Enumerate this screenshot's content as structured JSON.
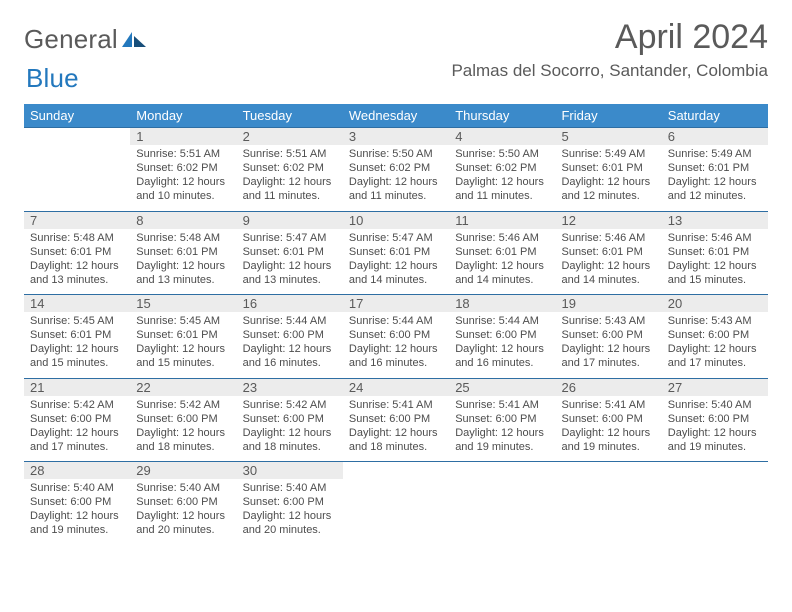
{
  "logo": {
    "text1": "General",
    "text2": "Blue"
  },
  "title": "April 2024",
  "location": "Palmas del Socorro, Santander, Colombia",
  "dow": [
    "Sunday",
    "Monday",
    "Tuesday",
    "Wednesday",
    "Thursday",
    "Friday",
    "Saturday"
  ],
  "colors": {
    "header_bg": "#3b8aca",
    "divider": "#2e6ea3",
    "daynum_bg": "#ececec",
    "text": "#5a5a5a"
  },
  "weeks": [
    {
      "nums": [
        "",
        "1",
        "2",
        "3",
        "4",
        "5",
        "6"
      ],
      "cells": [
        null,
        {
          "sr": "Sunrise: 5:51 AM",
          "ss": "Sunset: 6:02 PM",
          "d1": "Daylight: 12 hours",
          "d2": "and 10 minutes."
        },
        {
          "sr": "Sunrise: 5:51 AM",
          "ss": "Sunset: 6:02 PM",
          "d1": "Daylight: 12 hours",
          "d2": "and 11 minutes."
        },
        {
          "sr": "Sunrise: 5:50 AM",
          "ss": "Sunset: 6:02 PM",
          "d1": "Daylight: 12 hours",
          "d2": "and 11 minutes."
        },
        {
          "sr": "Sunrise: 5:50 AM",
          "ss": "Sunset: 6:02 PM",
          "d1": "Daylight: 12 hours",
          "d2": "and 11 minutes."
        },
        {
          "sr": "Sunrise: 5:49 AM",
          "ss": "Sunset: 6:01 PM",
          "d1": "Daylight: 12 hours",
          "d2": "and 12 minutes."
        },
        {
          "sr": "Sunrise: 5:49 AM",
          "ss": "Sunset: 6:01 PM",
          "d1": "Daylight: 12 hours",
          "d2": "and 12 minutes."
        }
      ]
    },
    {
      "nums": [
        "7",
        "8",
        "9",
        "10",
        "11",
        "12",
        "13"
      ],
      "cells": [
        {
          "sr": "Sunrise: 5:48 AM",
          "ss": "Sunset: 6:01 PM",
          "d1": "Daylight: 12 hours",
          "d2": "and 13 minutes."
        },
        {
          "sr": "Sunrise: 5:48 AM",
          "ss": "Sunset: 6:01 PM",
          "d1": "Daylight: 12 hours",
          "d2": "and 13 minutes."
        },
        {
          "sr": "Sunrise: 5:47 AM",
          "ss": "Sunset: 6:01 PM",
          "d1": "Daylight: 12 hours",
          "d2": "and 13 minutes."
        },
        {
          "sr": "Sunrise: 5:47 AM",
          "ss": "Sunset: 6:01 PM",
          "d1": "Daylight: 12 hours",
          "d2": "and 14 minutes."
        },
        {
          "sr": "Sunrise: 5:46 AM",
          "ss": "Sunset: 6:01 PM",
          "d1": "Daylight: 12 hours",
          "d2": "and 14 minutes."
        },
        {
          "sr": "Sunrise: 5:46 AM",
          "ss": "Sunset: 6:01 PM",
          "d1": "Daylight: 12 hours",
          "d2": "and 14 minutes."
        },
        {
          "sr": "Sunrise: 5:46 AM",
          "ss": "Sunset: 6:01 PM",
          "d1": "Daylight: 12 hours",
          "d2": "and 15 minutes."
        }
      ]
    },
    {
      "nums": [
        "14",
        "15",
        "16",
        "17",
        "18",
        "19",
        "20"
      ],
      "cells": [
        {
          "sr": "Sunrise: 5:45 AM",
          "ss": "Sunset: 6:01 PM",
          "d1": "Daylight: 12 hours",
          "d2": "and 15 minutes."
        },
        {
          "sr": "Sunrise: 5:45 AM",
          "ss": "Sunset: 6:01 PM",
          "d1": "Daylight: 12 hours",
          "d2": "and 15 minutes."
        },
        {
          "sr": "Sunrise: 5:44 AM",
          "ss": "Sunset: 6:00 PM",
          "d1": "Daylight: 12 hours",
          "d2": "and 16 minutes."
        },
        {
          "sr": "Sunrise: 5:44 AM",
          "ss": "Sunset: 6:00 PM",
          "d1": "Daylight: 12 hours",
          "d2": "and 16 minutes."
        },
        {
          "sr": "Sunrise: 5:44 AM",
          "ss": "Sunset: 6:00 PM",
          "d1": "Daylight: 12 hours",
          "d2": "and 16 minutes."
        },
        {
          "sr": "Sunrise: 5:43 AM",
          "ss": "Sunset: 6:00 PM",
          "d1": "Daylight: 12 hours",
          "d2": "and 17 minutes."
        },
        {
          "sr": "Sunrise: 5:43 AM",
          "ss": "Sunset: 6:00 PM",
          "d1": "Daylight: 12 hours",
          "d2": "and 17 minutes."
        }
      ]
    },
    {
      "nums": [
        "21",
        "22",
        "23",
        "24",
        "25",
        "26",
        "27"
      ],
      "cells": [
        {
          "sr": "Sunrise: 5:42 AM",
          "ss": "Sunset: 6:00 PM",
          "d1": "Daylight: 12 hours",
          "d2": "and 17 minutes."
        },
        {
          "sr": "Sunrise: 5:42 AM",
          "ss": "Sunset: 6:00 PM",
          "d1": "Daylight: 12 hours",
          "d2": "and 18 minutes."
        },
        {
          "sr": "Sunrise: 5:42 AM",
          "ss": "Sunset: 6:00 PM",
          "d1": "Daylight: 12 hours",
          "d2": "and 18 minutes."
        },
        {
          "sr": "Sunrise: 5:41 AM",
          "ss": "Sunset: 6:00 PM",
          "d1": "Daylight: 12 hours",
          "d2": "and 18 minutes."
        },
        {
          "sr": "Sunrise: 5:41 AM",
          "ss": "Sunset: 6:00 PM",
          "d1": "Daylight: 12 hours",
          "d2": "and 19 minutes."
        },
        {
          "sr": "Sunrise: 5:41 AM",
          "ss": "Sunset: 6:00 PM",
          "d1": "Daylight: 12 hours",
          "d2": "and 19 minutes."
        },
        {
          "sr": "Sunrise: 5:40 AM",
          "ss": "Sunset: 6:00 PM",
          "d1": "Daylight: 12 hours",
          "d2": "and 19 minutes."
        }
      ]
    },
    {
      "nums": [
        "28",
        "29",
        "30",
        "",
        "",
        "",
        ""
      ],
      "cells": [
        {
          "sr": "Sunrise: 5:40 AM",
          "ss": "Sunset: 6:00 PM",
          "d1": "Daylight: 12 hours",
          "d2": "and 19 minutes."
        },
        {
          "sr": "Sunrise: 5:40 AM",
          "ss": "Sunset: 6:00 PM",
          "d1": "Daylight: 12 hours",
          "d2": "and 20 minutes."
        },
        {
          "sr": "Sunrise: 5:40 AM",
          "ss": "Sunset: 6:00 PM",
          "d1": "Daylight: 12 hours",
          "d2": "and 20 minutes."
        },
        null,
        null,
        null,
        null
      ]
    }
  ]
}
